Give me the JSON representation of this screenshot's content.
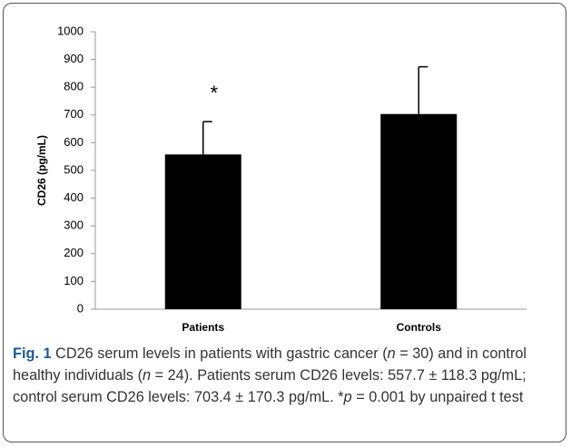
{
  "chart_data": {
    "type": "bar",
    "y_label": "CD26 (pg/mL)",
    "categories": [
      "Patients",
      "Controls"
    ],
    "values": [
      557.7,
      703.4
    ],
    "errors": [
      118.3,
      170.3
    ],
    "color": "#000000",
    "annotations": [
      "*",
      null
    ],
    "ylim": [
      0,
      1000
    ],
    "yticks": [
      0,
      100,
      200,
      300,
      400,
      500,
      600,
      700,
      800,
      900,
      1000
    ],
    "grid": false
  },
  "caption": [
    "Fig. 1",
    " CD26 serum levels in patients with gastric cancer (",
    "n",
    " = 30) and in control healthy individuals (",
    "n",
    " = 24). Patients serum CD26 levels: 557.7 ± 118.3 pg/mL; control serum CD26 levels: 703.4 ± 170.3 pg/mL. *",
    "p",
    " = 0.001 by unpaired t test"
  ]
}
